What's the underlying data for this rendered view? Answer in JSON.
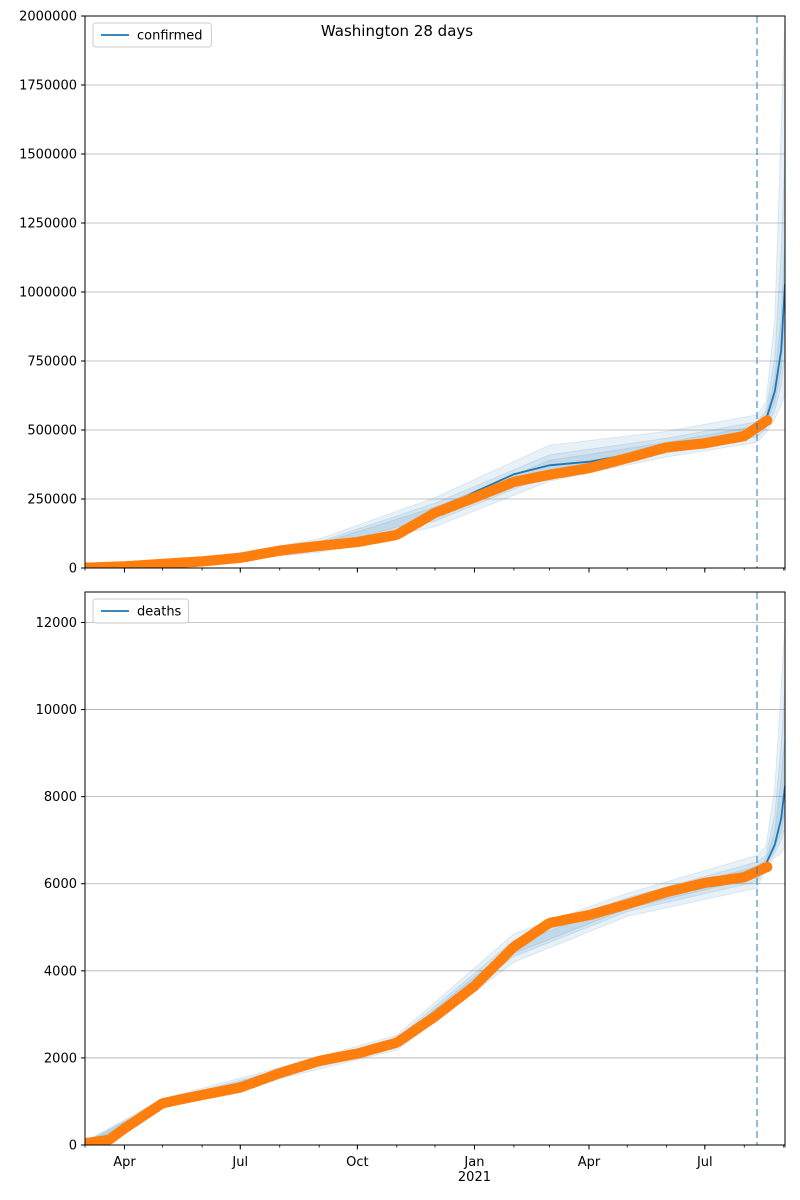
{
  "figure": {
    "title": "Washington 28 days"
  },
  "chart_data": [
    {
      "type": "line",
      "ylim": [
        0,
        2000000
      ],
      "yticks": [
        0,
        250000,
        500000,
        750000,
        1000000,
        1250000,
        1500000,
        1750000,
        2000000
      ],
      "ytick_labels": [
        "0",
        "250000",
        "500000",
        "750000",
        "1000000",
        "1250000",
        "1500000",
        "1750000",
        "2000000"
      ],
      "xlim": [
        "2020-03-01",
        "2021-09-02"
      ],
      "xticks": [
        "2020-04-01",
        "2020-07-01",
        "2020-10-01",
        "2021-01-01",
        "2021-04-01",
        "2021-07-01"
      ],
      "xtick_labels": [
        "",
        "",
        "",
        "",
        "",
        ""
      ],
      "grid": "horizontal",
      "legend": "top-left",
      "forecast_start": "2021-08-11",
      "series": [
        {
          "name": "confirmed",
          "kind": "fit-line",
          "color": "#1f77b4",
          "points": [
            [
              "2020-03-01",
              0
            ],
            [
              "2020-04-01",
              5000
            ],
            [
              "2020-05-01",
              14000
            ],
            [
              "2020-06-01",
              25000
            ],
            [
              "2020-07-01",
              36000
            ],
            [
              "2020-08-01",
              62000
            ],
            [
              "2020-09-01",
              80000
            ],
            [
              "2020-10-01",
              93000
            ],
            [
              "2020-11-01",
              130000
            ],
            [
              "2020-12-01",
              200000
            ],
            [
              "2021-01-01",
              275000
            ],
            [
              "2021-02-01",
              340000
            ],
            [
              "2021-03-01",
              372000
            ],
            [
              "2021-04-01",
              385000
            ],
            [
              "2021-05-01",
              410000
            ],
            [
              "2021-06-01",
              440000
            ],
            [
              "2021-07-01",
              455000
            ],
            [
              "2021-08-01",
              480000
            ],
            [
              "2021-08-11",
              505000
            ],
            [
              "2021-08-18",
              535000
            ],
            [
              "2021-08-25",
              640000
            ],
            [
              "2021-08-30",
              790000
            ],
            [
              "2021-09-02",
              1030000
            ]
          ]
        },
        {
          "name": "",
          "kind": "observed",
          "color": "#ff7f0e",
          "points": [
            [
              "2020-03-01",
              1000
            ],
            [
              "2020-04-01",
              6000
            ],
            [
              "2020-05-01",
              15000
            ],
            [
              "2020-06-01",
              24000
            ],
            [
              "2020-07-01",
              37000
            ],
            [
              "2020-08-01",
              63000
            ],
            [
              "2020-09-01",
              80000
            ],
            [
              "2020-10-01",
              94000
            ],
            [
              "2020-11-01",
              120000
            ],
            [
              "2020-12-01",
              200000
            ],
            [
              "2021-01-01",
              255000
            ],
            [
              "2021-02-01",
              312000
            ],
            [
              "2021-03-01",
              338000
            ],
            [
              "2021-04-01",
              362000
            ],
            [
              "2021-05-01",
              398000
            ],
            [
              "2021-06-01",
              437000
            ],
            [
              "2021-07-01",
              452000
            ],
            [
              "2021-08-01",
              478000
            ],
            [
              "2021-08-20",
              538000
            ]
          ]
        }
      ],
      "uncertainty_bands": [
        {
          "color": "#1f77b4",
          "x": [
            "2020-03-01",
            "2020-06-01",
            "2020-09-01",
            "2020-12-01",
            "2021-03-01",
            "2021-06-01",
            "2021-08-11",
            "2021-08-18",
            "2021-08-25",
            "2021-08-30",
            "2021-09-02"
          ],
          "lower": [
            0,
            17000,
            57000,
            150000,
            315000,
            402000,
            455000,
            490000,
            540000,
            590000,
            630000
          ],
          "upper": [
            12000,
            33000,
            105000,
            255000,
            445000,
            495000,
            555000,
            600000,
            900000,
            1600000,
            2000000
          ]
        },
        {
          "color": "#1f77b4",
          "x": [
            "2020-03-01",
            "2020-06-01",
            "2020-09-01",
            "2020-12-01",
            "2021-03-01",
            "2021-06-01",
            "2021-08-11",
            "2021-08-18",
            "2021-08-25",
            "2021-08-30",
            "2021-09-02"
          ],
          "lower": [
            0,
            20000,
            66000,
            170000,
            338000,
            418000,
            475000,
            505000,
            570000,
            660000,
            780000
          ],
          "upper": [
            8000,
            30000,
            95000,
            235000,
            410000,
            470000,
            530000,
            570000,
            760000,
            1150000,
            1500000
          ]
        },
        {
          "color": "#1f77b4",
          "x": [
            "2020-03-01",
            "2020-06-01",
            "2020-09-01",
            "2020-12-01",
            "2021-03-01",
            "2021-06-01",
            "2021-08-11",
            "2021-08-18",
            "2021-08-25",
            "2021-08-30",
            "2021-09-02"
          ],
          "lower": [
            0,
            22000,
            72000,
            185000,
            355000,
            428000,
            488000,
            520000,
            600000,
            720000,
            900000
          ],
          "upper": [
            5000,
            28000,
            88000,
            220000,
            390000,
            455000,
            515000,
            552000,
            690000,
            900000,
            1200000
          ]
        }
      ]
    },
    {
      "type": "line",
      "ylim": [
        0,
        12700
      ],
      "yticks": [
        0,
        2000,
        4000,
        6000,
        8000,
        10000,
        12000
      ],
      "ytick_labels": [
        "0",
        "2000",
        "4000",
        "6000",
        "8000",
        "10000",
        "12000"
      ],
      "xlim": [
        "2020-03-01",
        "2021-09-02"
      ],
      "xticks": [
        "2020-04-01",
        "2020-07-01",
        "2020-10-01",
        "2021-01-01",
        "2021-04-01",
        "2021-07-01"
      ],
      "xtick_labels": [
        "Apr",
        "Jul",
        "Oct",
        "Jan\n2021",
        "Apr",
        "Jul"
      ],
      "grid": "horizontal",
      "legend": "top-left",
      "forecast_start": "2021-08-11",
      "series": [
        {
          "name": "deaths",
          "kind": "fit-line",
          "color": "#1f77b4",
          "points": [
            [
              "2020-03-01",
              30
            ],
            [
              "2020-03-20",
              100
            ],
            [
              "2020-04-01",
              350
            ],
            [
              "2020-05-01",
              950
            ],
            [
              "2020-06-01",
              1150
            ],
            [
              "2020-07-01",
              1320
            ],
            [
              "2020-08-01",
              1650
            ],
            [
              "2020-09-01",
              1920
            ],
            [
              "2020-10-01",
              2100
            ],
            [
              "2020-11-01",
              2350
            ],
            [
              "2020-12-01",
              2900
            ],
            [
              "2021-01-01",
              3600
            ],
            [
              "2021-02-01",
              4500
            ],
            [
              "2021-03-01",
              5050
            ],
            [
              "2021-04-01",
              5250
            ],
            [
              "2021-05-01",
              5500
            ],
            [
              "2021-06-01",
              5800
            ],
            [
              "2021-07-01",
              6000
            ],
            [
              "2021-08-01",
              6150
            ],
            [
              "2021-08-11",
              6280
            ],
            [
              "2021-08-18",
              6450
            ],
            [
              "2021-08-25",
              6900
            ],
            [
              "2021-08-30",
              7500
            ],
            [
              "2021-09-02",
              8250
            ]
          ]
        },
        {
          "name": "",
          "kind": "observed",
          "color": "#ff7f0e",
          "points": [
            [
              "2020-03-01",
              40
            ],
            [
              "2020-03-20",
              120
            ],
            [
              "2020-04-01",
              380
            ],
            [
              "2020-05-01",
              960
            ],
            [
              "2020-06-01",
              1150
            ],
            [
              "2020-07-01",
              1320
            ],
            [
              "2020-08-01",
              1650
            ],
            [
              "2020-09-01",
              1930
            ],
            [
              "2020-10-01",
              2100
            ],
            [
              "2020-11-01",
              2350
            ],
            [
              "2020-12-01",
              2950
            ],
            [
              "2021-01-01",
              3650
            ],
            [
              "2021-02-01",
              4550
            ],
            [
              "2021-03-01",
              5100
            ],
            [
              "2021-04-01",
              5280
            ],
            [
              "2021-05-01",
              5530
            ],
            [
              "2021-06-01",
              5810
            ],
            [
              "2021-07-01",
              6020
            ],
            [
              "2021-08-01",
              6150
            ],
            [
              "2021-08-20",
              6400
            ]
          ]
        }
      ],
      "uncertainty_bands": [
        {
          "color": "#1f77b4",
          "x": [
            "2020-03-01",
            "2020-05-01",
            "2020-08-01",
            "2020-11-01",
            "2021-02-01",
            "2021-05-01",
            "2021-08-11",
            "2021-08-18",
            "2021-08-25",
            "2021-08-30",
            "2021-09-02"
          ],
          "lower": [
            0,
            850,
            1520,
            2180,
            4200,
            5250,
            5900,
            6350,
            6600,
            6700,
            6850
          ],
          "upper": [
            80,
            1060,
            1780,
            2520,
            4850,
            5780,
            6650,
            6850,
            8200,
            10500,
            12000
          ]
        },
        {
          "color": "#1f77b4",
          "x": [
            "2020-03-01",
            "2020-05-01",
            "2020-08-01",
            "2020-11-01",
            "2021-02-01",
            "2021-05-01",
            "2021-08-11",
            "2021-08-18",
            "2021-08-25",
            "2021-08-30",
            "2021-09-02"
          ],
          "lower": [
            0,
            890,
            1580,
            2250,
            4330,
            5360,
            6050,
            6400,
            6700,
            7000,
            7300
          ],
          "upper": [
            60,
            1020,
            1720,
            2450,
            4700,
            5680,
            6500,
            6650,
            7600,
            9200,
            10600
          ]
        },
        {
          "color": "#1f77b4",
          "x": [
            "2020-03-01",
            "2020-05-01",
            "2020-08-01",
            "2020-11-01",
            "2021-02-01",
            "2021-05-01",
            "2021-08-11",
            "2021-08-18",
            "2021-08-25",
            "2021-08-30",
            "2021-09-02"
          ],
          "lower": [
            0,
            920,
            1610,
            2300,
            4400,
            5430,
            6150,
            6420,
            6800,
            7200,
            7700
          ],
          "upper": [
            45,
            990,
            1690,
            2400,
            4600,
            5600,
            6400,
            6550,
            7200,
            8400,
            9400
          ]
        }
      ]
    }
  ]
}
